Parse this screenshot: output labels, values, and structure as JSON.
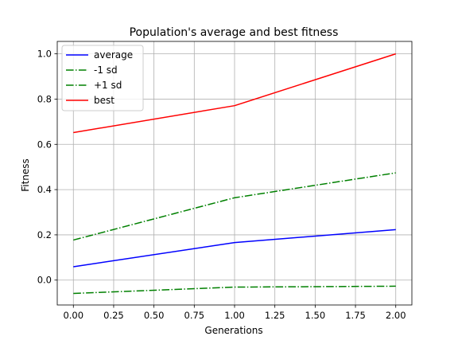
{
  "chart_data": {
    "type": "line",
    "title": "Population's average and best fitness",
    "xlabel": "Generations",
    "ylabel": "Fitness",
    "x": [
      0,
      1,
      2
    ],
    "xlim": [
      -0.1,
      2.1
    ],
    "ylim": [
      -0.11,
      1.055
    ],
    "xticks": [
      0.0,
      0.25,
      0.5,
      0.75,
      1.0,
      1.25,
      1.5,
      1.75,
      2.0
    ],
    "xtick_labels": [
      "0.00",
      "0.25",
      "0.50",
      "0.75",
      "1.00",
      "1.25",
      "1.50",
      "1.75",
      "2.00"
    ],
    "yticks": [
      0.0,
      0.2,
      0.4,
      0.6,
      0.8,
      1.0
    ],
    "ytick_labels": [
      "0.0",
      "0.2",
      "0.4",
      "0.6",
      "0.8",
      "1.0"
    ],
    "grid": true,
    "legend_position": "top-left",
    "series": [
      {
        "name": "average",
        "values": [
          0.059,
          0.166,
          0.223
        ],
        "color": "#0000ff",
        "style": "solid"
      },
      {
        "name": "-1 sd",
        "values": [
          -0.059,
          -0.031,
          -0.027
        ],
        "color": "#008000",
        "style": "dashdot"
      },
      {
        "name": "+1 sd",
        "values": [
          0.177,
          0.364,
          0.474
        ],
        "color": "#008000",
        "style": "dashdot"
      },
      {
        "name": "best",
        "values": [
          0.652,
          0.771,
          1.0
        ],
        "color": "#ff0000",
        "style": "solid"
      }
    ]
  }
}
